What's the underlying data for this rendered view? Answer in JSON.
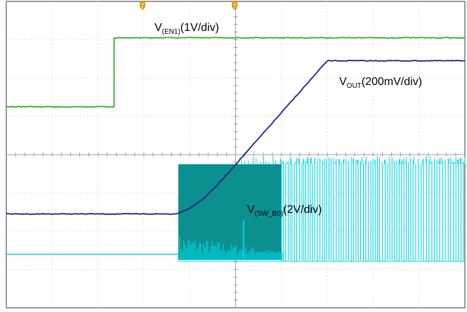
{
  "chart_data": {
    "type": "line",
    "title": "",
    "xlabel": "",
    "ylabel": "",
    "grid": true,
    "grid_divisions": {
      "x": 10,
      "y": 8
    },
    "xlim": [
      0,
      10
    ],
    "ylim": [
      -4,
      4
    ],
    "units": "divisions",
    "colors": {
      "en1": "#3aa832",
      "vout": "#1a237e",
      "sw": "#00d4e0",
      "sw_dense": "#0c8f8f",
      "grid": "#c8c8c8",
      "axis": "#a0a0a0",
      "marker": "#d9a000"
    },
    "series": [
      {
        "key": "en1",
        "label": {
          "main": "V",
          "sub": "(EN1)",
          "rest": "(1V/div)"
        },
        "x": [
          0,
          2.35,
          2.35,
          10
        ],
        "y": [
          1.25,
          1.25,
          3.05,
          3.05
        ]
      },
      {
        "key": "vout",
        "label": {
          "main": "V",
          "sub": "OUT",
          "rest": "(200mV/div)"
        },
        "x": [
          0,
          3.7,
          4.0,
          4.3,
          4.6,
          7.0,
          10
        ],
        "y": [
          -1.55,
          -1.55,
          -1.4,
          -1.15,
          -0.8,
          2.45,
          2.45
        ]
      },
      {
        "key": "sw",
        "label": {
          "main": "V",
          "sub": "(SW_B0)",
          "rest": "(2V/div)"
        },
        "x": [
          0,
          3.75,
          10
        ],
        "y": [
          -2.6,
          -2.6,
          -2.6
        ]
      }
    ],
    "annotations": [
      {
        "text": "T",
        "x": 2.97,
        "y": 4
      },
      {
        "text": "T",
        "x": 4.98,
        "y": 4
      }
    ]
  }
}
